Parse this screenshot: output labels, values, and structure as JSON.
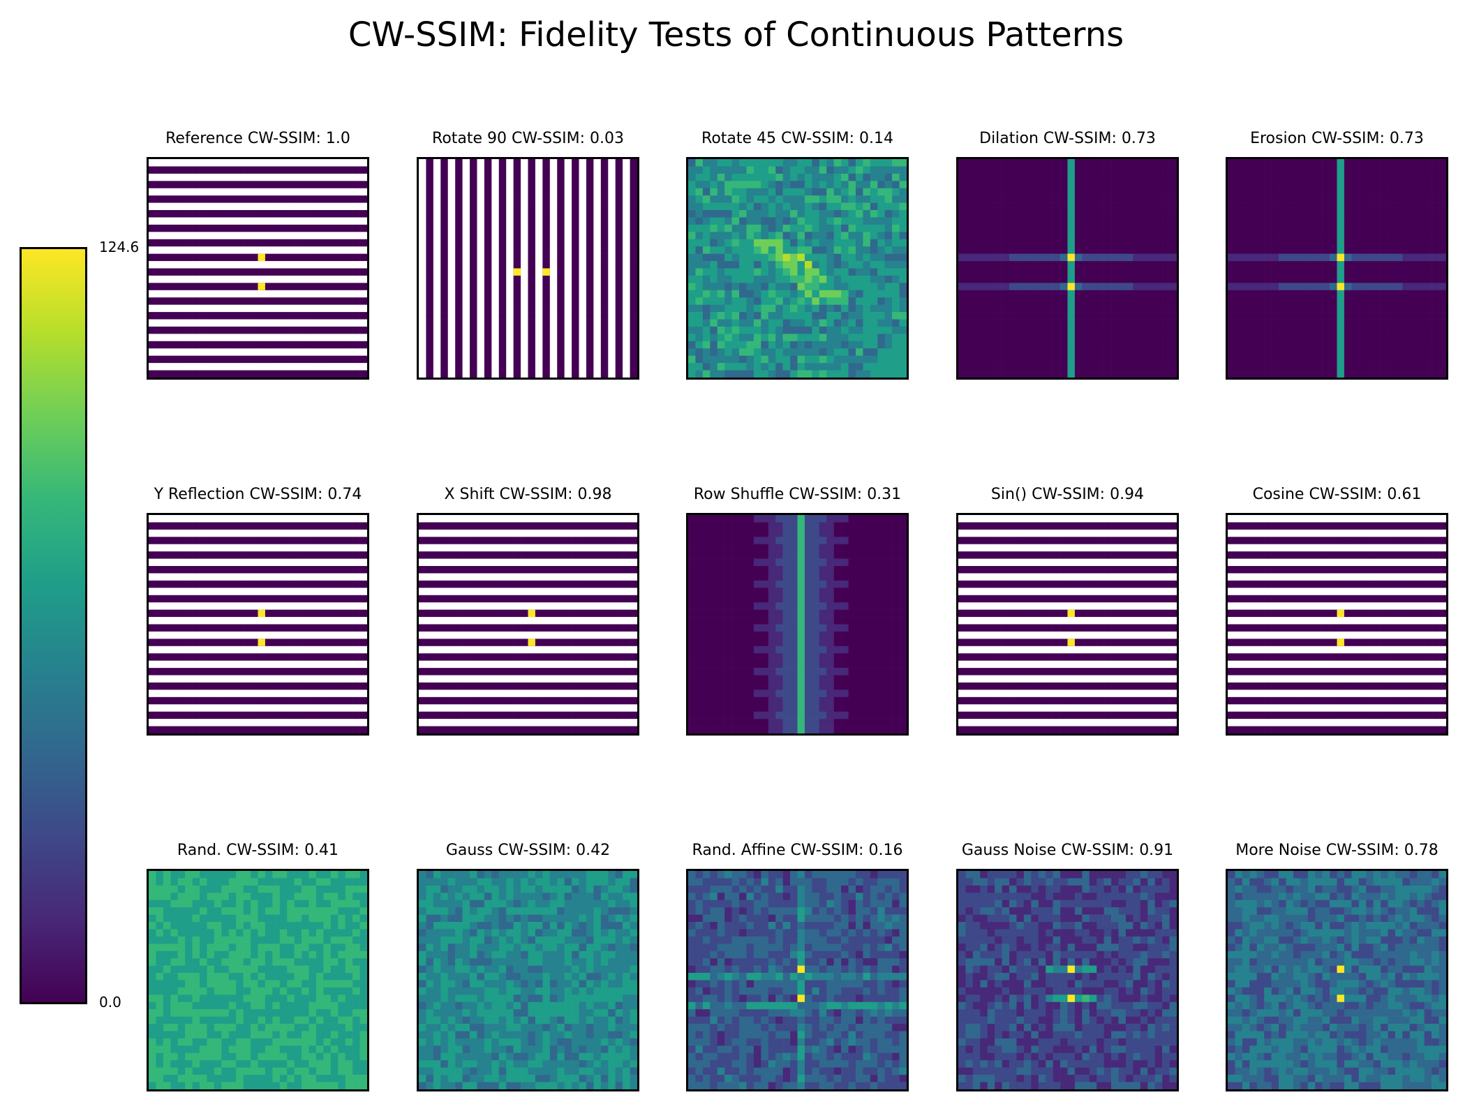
{
  "title": "CW-SSIM: Fidelity Tests of Continuous Patterns",
  "colorbar": {
    "max_label": "124.6",
    "min_label": "0.0",
    "colormap": "viridis"
  },
  "chart_data": {
    "type": "heatmap",
    "title": "CW-SSIM: Fidelity Tests of Continuous Patterns",
    "colorbar_range": [
      0.0,
      124.6
    ],
    "grid_size": [
      30,
      30
    ],
    "panels": [
      {
        "label": "Reference",
        "score": "1.0",
        "title": "Reference  CW-SSIM: 1.0",
        "pattern": "h-stripes"
      },
      {
        "label": "Rotate 90",
        "score": "0.03",
        "title": "Rotate 90  CW-SSIM: 0.03",
        "pattern": "v-stripes"
      },
      {
        "label": "Rotate 45",
        "score": "0.14",
        "title": "Rotate 45  CW-SSIM: 0.14",
        "pattern": "noise-diag"
      },
      {
        "label": "Dilation",
        "score": "0.73",
        "title": "Dilation  CW-SSIM: 0.73",
        "pattern": "cross"
      },
      {
        "label": "Erosion",
        "score": "0.73",
        "title": "Erosion  CW-SSIM: 0.73",
        "pattern": "cross"
      },
      {
        "label": "Y Reflection",
        "score": "0.74",
        "title": "Y Reflection  CW-SSIM: 0.74",
        "pattern": "h-stripes"
      },
      {
        "label": "X Shift",
        "score": "0.98",
        "title": "X Shift  CW-SSIM: 0.98",
        "pattern": "h-stripes-shift"
      },
      {
        "label": "Row Shuffle",
        "score": "0.31",
        "title": "Row Shuffle  CW-SSIM: 0.31",
        "pattern": "vline"
      },
      {
        "label": "Sin()",
        "score": "0.94",
        "title": "Sin()  CW-SSIM: 0.94",
        "pattern": "h-stripes"
      },
      {
        "label": "Cosine",
        "score": "0.61",
        "title": "Cosine  CW-SSIM: 0.61",
        "pattern": "h-stripes"
      },
      {
        "label": "Rand.",
        "score": "0.41",
        "title": "Rand.  CW-SSIM: 0.41",
        "pattern": "noise-high"
      },
      {
        "label": "Gauss",
        "score": "0.42",
        "title": "Gauss  CW-SSIM: 0.42",
        "pattern": "noise-mid"
      },
      {
        "label": "Rand. Affine",
        "score": "0.16",
        "title": "Rand. Affine  CW-SSIM: 0.16",
        "pattern": "noise-cross"
      },
      {
        "label": "Gauss Noise",
        "score": "0.91",
        "title": "Gauss Noise  CW-SSIM: 0.91",
        "pattern": "noise-low-dots"
      },
      {
        "label": "More Noise",
        "score": "0.78",
        "title": "More Noise  CW-SSIM: 0.78",
        "pattern": "noise-mid-dots"
      }
    ]
  }
}
